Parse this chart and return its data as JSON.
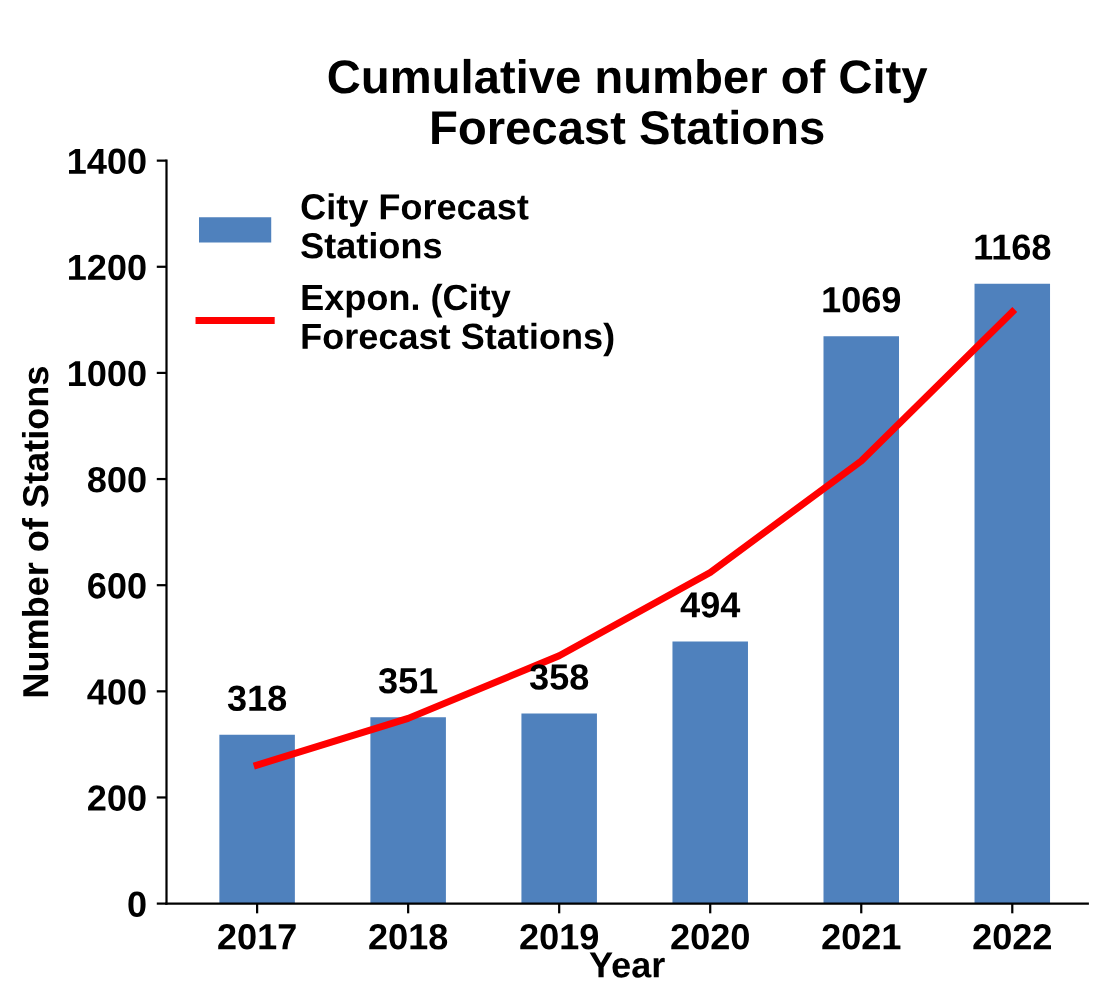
{
  "chart_data": {
    "type": "bar",
    "title": "Cumulative number of City\nForecast Stations",
    "xlabel": "Year",
    "ylabel": "Number of Stations",
    "categories": [
      "2017",
      "2018",
      "2019",
      "2020",
      "2021",
      "2022"
    ],
    "series": [
      {
        "name": "City Forecast\nStations",
        "color": "#4f81bd",
        "values": [
          318,
          351,
          358,
          494,
          1069,
          1168
        ],
        "value_labels": [
          "318",
          "351",
          "358",
          "494",
          "1069",
          "1168"
        ]
      },
      {
        "name": "Expon. (City\nForecast Stations)",
        "type": "line",
        "color": "#ff0000",
        "values": [
          261,
          349,
          467,
          624,
          834,
          1115
        ]
      }
    ],
    "ylim": [
      0,
      1400
    ],
    "yticks": [
      0,
      200,
      400,
      600,
      800,
      1000,
      1200,
      1400
    ],
    "grid": false,
    "legend": "top left",
    "marker": "none",
    "line_style": "solid"
  }
}
